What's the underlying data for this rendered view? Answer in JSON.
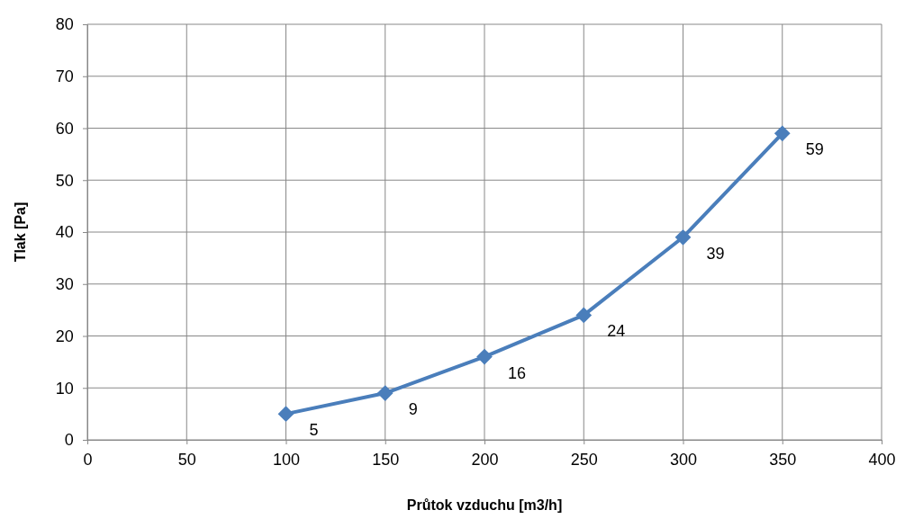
{
  "chart_data": {
    "type": "line",
    "xlabel": "Průtok vzduchu [m3/h]",
    "ylabel": "Tlak [Pa]",
    "x": [
      100,
      150,
      200,
      250,
      300,
      350
    ],
    "series": [
      {
        "color": "#4a7ebb",
        "values": [
          5,
          9,
          16,
          24,
          39,
          59
        ]
      }
    ],
    "xlim": [
      0,
      400
    ],
    "xticks": [
      0,
      50,
      100,
      150,
      200,
      250,
      300,
      350,
      400
    ],
    "ylim": [
      0,
      80
    ],
    "yticks": [
      0,
      10,
      20,
      30,
      40,
      50,
      60,
      70,
      80
    ],
    "grid": true,
    "marker": "diamond",
    "line_style": "solid",
    "data_labels": true
  }
}
